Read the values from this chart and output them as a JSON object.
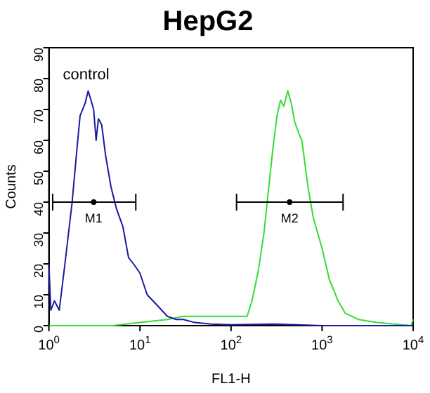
{
  "chart_data": {
    "type": "line",
    "title": "HepG2",
    "xlabel": "FL1-H",
    "ylabel": "Counts",
    "log": "x",
    "xlim": [
      1,
      10000
    ],
    "xticks": [
      {
        "value": 1,
        "label": "10$^{0}$"
      },
      {
        "value": 10,
        "label": "10$^{1}$"
      },
      {
        "value": 100,
        "label": "10$^{2}$"
      },
      {
        "value": 1000,
        "label": "10$^{3}$"
      },
      {
        "value": 10000,
        "label": "10$^{4}$"
      }
    ],
    "ylim": [
      0,
      90
    ],
    "yticks": [
      0,
      10,
      20,
      30,
      40,
      50,
      60,
      70,
      80,
      90
    ],
    "grid": false,
    "legend": false,
    "marker": "none",
    "line_style": "solid",
    "series": [
      {
        "color": "#1a1aa0",
        "x": [
          1,
          1.05,
          1.15,
          1.3,
          1.5,
          1.8,
          2,
          2.2,
          2.5,
          2.7,
          2.9,
          3.1,
          3.3,
          3.5,
          3.8,
          4.2,
          4.8,
          5.5,
          6.5,
          7.5,
          8.5,
          10,
          12,
          15,
          20,
          25,
          30,
          40,
          60,
          100,
          300,
          1000,
          10000
        ],
        "values": [
          20,
          5,
          8,
          5,
          20,
          40,
          55,
          68,
          72,
          76,
          73,
          70,
          60,
          67,
          65,
          55,
          45,
          38,
          32,
          22,
          20,
          17,
          10,
          7,
          3,
          2,
          2,
          1,
          0.5,
          0.3,
          0.5,
          0,
          0
        ]
      },
      {
        "color": "#33dd33",
        "x": [
          1,
          5,
          10,
          20,
          30,
          50,
          100,
          150,
          170,
          200,
          230,
          260,
          290,
          320,
          350,
          380,
          420,
          460,
          500,
          560,
          600,
          700,
          800,
          1000,
          1200,
          1500,
          1800,
          2500,
          4000,
          9500,
          10000
        ],
        "values": [
          0,
          0,
          1,
          2,
          3,
          3,
          3,
          3,
          8,
          18,
          30,
          45,
          58,
          68,
          73,
          71,
          76,
          72,
          66,
          62,
          60,
          45,
          35,
          25,
          15,
          8,
          4,
          2,
          1,
          0,
          2
        ]
      },
      {
        "type": "scatter",
        "color": "#000000",
        "marker": "circle",
        "x": [
          3.1,
          440
        ],
        "values": [
          40,
          40
        ],
        "xerrors": [
          [
            1.1,
            9
          ],
          [
            115,
            1700
          ]
        ]
      }
    ],
    "annotations": [
      "control",
      {
        "text": "M1",
        "x": 3.1,
        "y": 40
      },
      {
        "text": "M2",
        "x": 440,
        "y": 40
      }
    ]
  }
}
